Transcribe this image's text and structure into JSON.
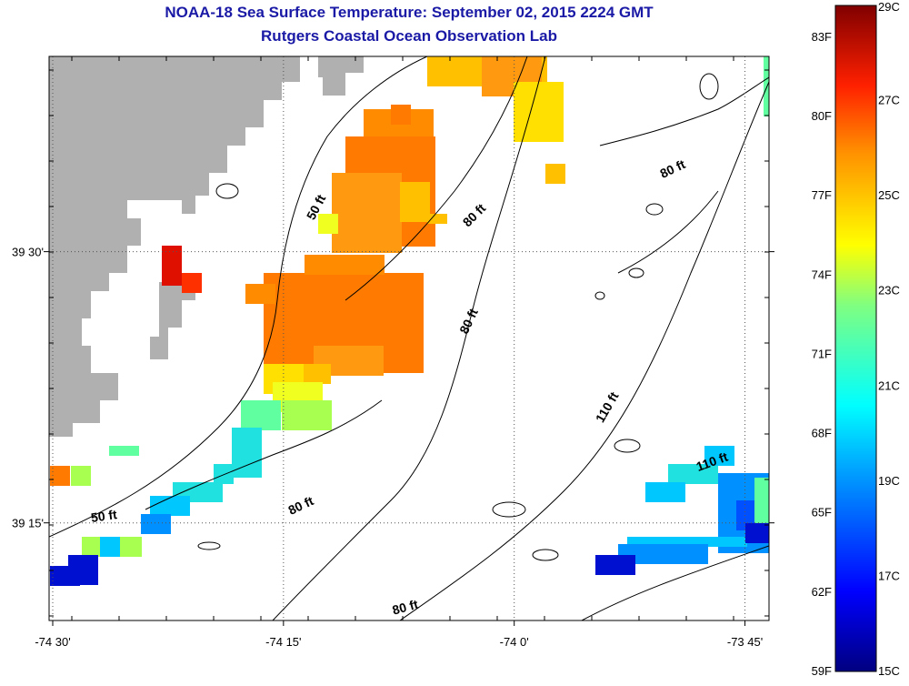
{
  "header": {
    "title": "NOAA-18 Sea Surface Temperature:  September 02, 2015 2224 GMT",
    "subtitle": "Rutgers Coastal Ocean Observation Lab"
  },
  "axes": {
    "x_ticks": [
      {
        "lon": -74.5,
        "label": "-74 30'"
      },
      {
        "lon": -74.25,
        "label": "-74 15'"
      },
      {
        "lon": -74.0,
        "label": "-74 0'"
      },
      {
        "lon": -73.75,
        "label": "-73 45'"
      }
    ],
    "y_ticks": [
      {
        "lat": 39.5,
        "label": "39 30'"
      },
      {
        "lat": 39.25,
        "label": "39 15'"
      }
    ],
    "lon_range": [
      -74.5,
      -73.72
    ],
    "lat_range": [
      39.16,
      39.68
    ]
  },
  "colorbar": {
    "celsius": [
      {
        "value": 29,
        "label": "29C"
      },
      {
        "value": 27,
        "label": "27C"
      },
      {
        "value": 25,
        "label": "25C"
      },
      {
        "value": 23,
        "label": "23C"
      },
      {
        "value": 21,
        "label": "21C"
      },
      {
        "value": 19,
        "label": "19C"
      },
      {
        "value": 17,
        "label": "17C"
      },
      {
        "value": 15,
        "label": "15C"
      }
    ],
    "fahrenheit": [
      {
        "value": 83,
        "label": "83F"
      },
      {
        "value": 80,
        "label": "80F"
      },
      {
        "value": 77,
        "label": "77F"
      },
      {
        "value": 74,
        "label": "74F"
      },
      {
        "value": 71,
        "label": "71F"
      },
      {
        "value": 68,
        "label": "68F"
      },
      {
        "value": 65,
        "label": "65F"
      },
      {
        "value": 62,
        "label": "62F"
      },
      {
        "value": 59,
        "label": "59F"
      }
    ],
    "range_c": [
      15,
      29
    ]
  },
  "depth_labels": [
    {
      "text": "50 ft"
    },
    {
      "text": "80 ft"
    },
    {
      "text": "80 ft"
    },
    {
      "text": "80 ft"
    },
    {
      "text": "110 ft"
    },
    {
      "text": "110 ft"
    },
    {
      "text": "50 ft"
    },
    {
      "text": "80 ft"
    },
    {
      "text": "80 ft"
    }
  ],
  "colors": {
    "title": "#1a1aa6",
    "land": "#b0b0b0",
    "no_data": "#ffffff"
  }
}
